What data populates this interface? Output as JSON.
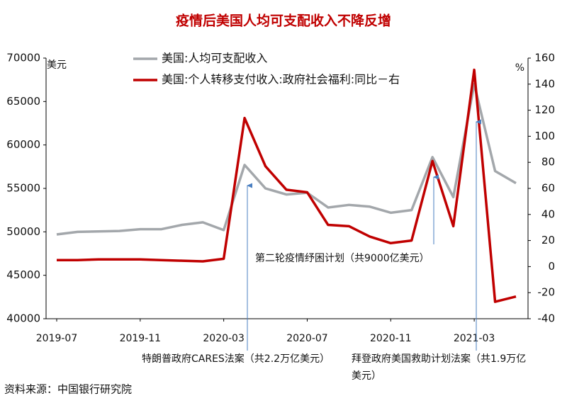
{
  "chart_data": {
    "type": "line",
    "title": "疫情后美国人均可支配收入不降反增",
    "y_label": "美元",
    "y2_label": "%",
    "categories": [
      "2019-07",
      null,
      null,
      null,
      "2019-11",
      null,
      null,
      null,
      "2020-03",
      null,
      null,
      null,
      "2020-07",
      null,
      null,
      null,
      "2020-11",
      null,
      null,
      null,
      "2021-03",
      null,
      null
    ],
    "series": [
      {
        "name": "美国:人均可支配收入",
        "color": "#a3a7ab",
        "axis": "y",
        "values": [
          49700,
          50000,
          50050,
          50100,
          50300,
          50300,
          50800,
          51100,
          50200,
          57700,
          55000,
          54300,
          54500,
          52800,
          53100,
          52900,
          52200,
          52500,
          58600,
          54000,
          67000,
          57000,
          55600
        ]
      },
      {
        "name": "美国:个人转移支付收入:政府社会福利:同比－右",
        "color": "#c00000",
        "axis": "y2",
        "values": [
          5,
          5,
          5.5,
          5.5,
          5.5,
          5,
          4.5,
          4,
          6,
          114,
          77,
          59,
          57,
          32,
          31,
          23,
          18,
          20,
          81,
          31,
          151,
          -27,
          -23
        ]
      }
    ],
    "ylim": [
      40000,
      70000
    ],
    "yticks": [
      40000,
      45000,
      50000,
      55000,
      60000,
      65000,
      70000
    ],
    "y2lim": [
      -40,
      160
    ],
    "y2ticks": [
      -40,
      -20,
      0,
      20,
      40,
      60,
      80,
      100,
      120,
      140,
      160
    ],
    "annotations": [
      {
        "lines": [
          "特朗普政府CARES法案（共2.2万亿美元）"
        ]
      },
      {
        "lines": [
          "第二轮疫情纾困计划（共9000亿美元）"
        ]
      },
      {
        "lines": [
          "拜登政府美国救助计划法案（共1.9万亿",
          "美元）"
        ]
      }
    ],
    "source": "资料来源：中国银行研究院"
  }
}
